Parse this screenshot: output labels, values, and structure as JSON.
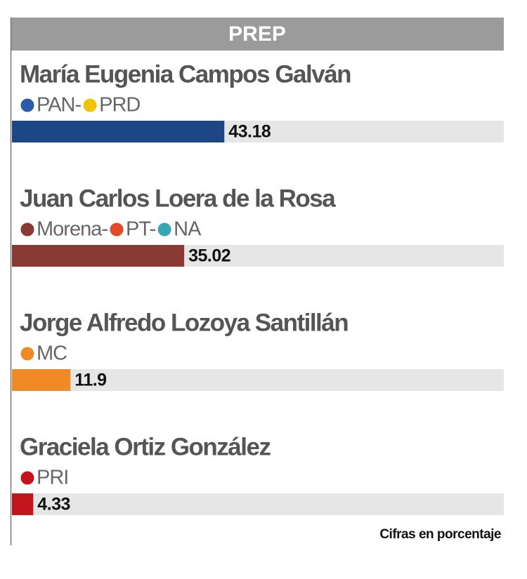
{
  "chart_data": {
    "type": "bar",
    "orientation": "horizontal",
    "title": "PREP",
    "categories": [
      "María Eugenia Campos Galván",
      "Juan Carlos Loera de la Rosa",
      "Jorge Alfredo Lozoya Santillán",
      "Graciela Ortiz González"
    ],
    "parties": [
      [
        "PAN-",
        "PRD"
      ],
      [
        "Morena-",
        "PT-",
        "NA"
      ],
      [
        "MC"
      ],
      [
        "PRI"
      ]
    ],
    "values": [
      43.18,
      35.02,
      11.9,
      4.33
    ],
    "colors": [
      "#1d4784",
      "#8a3a33",
      "#f08a24",
      "#c3161c"
    ],
    "party_colors": [
      [
        "#2a5caa",
        "#f2c300"
      ],
      [
        "#8a3a33",
        "#e34a2a",
        "#35a8b8"
      ],
      [
        "#f08a24"
      ],
      [
        "#c3161c"
      ]
    ],
    "xlim": [
      0,
      100
    ],
    "note": "Cifras en porcentaje"
  }
}
